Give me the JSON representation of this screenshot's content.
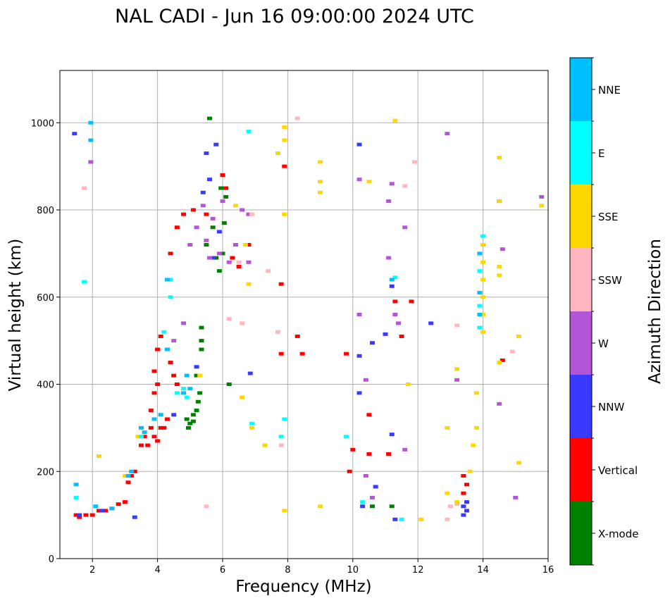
{
  "chart_data": {
    "type": "scatter",
    "title": "NAL CADI - Jun 16 09:00:00 2024 UTC",
    "xlabel": "Frequency (MHz)",
    "ylabel": "Virtual height (km)",
    "xlim": [
      1,
      16
    ],
    "ylim": [
      0,
      1120
    ],
    "xticks": [
      2,
      4,
      6,
      8,
      10,
      12,
      14,
      16
    ],
    "yticks": [
      0,
      200,
      400,
      600,
      800,
      1000
    ],
    "grid": true,
    "colorbar": {
      "label": "Azimuth Direction",
      "categories": [
        {
          "name": "X-mode",
          "color": "#008000"
        },
        {
          "name": "Vertical",
          "color": "#ff0000"
        },
        {
          "name": "NNW",
          "color": "#3a3aff"
        },
        {
          "name": "W",
          "color": "#b455d8"
        },
        {
          "name": "SSW",
          "color": "#ffb6c1"
        },
        {
          "name": "SSE",
          "color": "#ffd700"
        },
        {
          "name": "E",
          "color": "#00ffff"
        },
        {
          "name": "NNE",
          "color": "#00bfff"
        }
      ]
    },
    "series": [
      {
        "name": "X-mode",
        "points": [
          [
            4.9,
            320
          ],
          [
            5.0,
            310
          ],
          [
            5.1,
            330
          ],
          [
            5.2,
            340
          ],
          [
            5.25,
            360
          ],
          [
            5.3,
            380
          ],
          [
            5.1,
            315
          ],
          [
            4.95,
            300
          ],
          [
            5.2,
            420
          ],
          [
            5.35,
            480
          ],
          [
            5.35,
            500
          ],
          [
            5.35,
            530
          ],
          [
            5.5,
            720
          ],
          [
            5.7,
            760
          ],
          [
            5.8,
            690
          ],
          [
            5.9,
            660
          ],
          [
            6.0,
            700
          ],
          [
            6.05,
            770
          ],
          [
            6.1,
            830
          ],
          [
            5.95,
            850
          ],
          [
            5.6,
            1010
          ],
          [
            6.2,
            400
          ],
          [
            10.6,
            120
          ],
          [
            11.2,
            120
          ]
        ]
      },
      {
        "name": "Vertical",
        "points": [
          [
            1.5,
            100
          ],
          [
            1.6,
            95
          ],
          [
            1.8,
            100
          ],
          [
            2.0,
            100
          ],
          [
            2.2,
            110
          ],
          [
            2.4,
            110
          ],
          [
            2.6,
            115
          ],
          [
            2.8,
            125
          ],
          [
            3.0,
            130
          ],
          [
            3.1,
            175
          ],
          [
            3.2,
            190
          ],
          [
            3.3,
            200
          ],
          [
            3.5,
            260
          ],
          [
            3.6,
            280
          ],
          [
            3.7,
            260
          ],
          [
            3.8,
            300
          ],
          [
            3.9,
            280
          ],
          [
            4.0,
            270
          ],
          [
            4.2,
            300
          ],
          [
            4.3,
            320
          ],
          [
            4.1,
            300
          ],
          [
            3.8,
            340
          ],
          [
            3.9,
            380
          ],
          [
            4.0,
            400
          ],
          [
            3.9,
            430
          ],
          [
            4.0,
            480
          ],
          [
            4.1,
            510
          ],
          [
            4.4,
            450
          ],
          [
            4.5,
            420
          ],
          [
            4.6,
            400
          ],
          [
            4.4,
            700
          ],
          [
            4.6,
            760
          ],
          [
            4.8,
            790
          ],
          [
            5.1,
            800
          ],
          [
            5.5,
            790
          ],
          [
            6.0,
            880
          ],
          [
            6.1,
            850
          ],
          [
            6.3,
            690
          ],
          [
            6.5,
            670
          ],
          [
            6.8,
            720
          ],
          [
            7.8,
            630
          ],
          [
            7.8,
            470
          ],
          [
            7.9,
            900
          ],
          [
            8.3,
            510
          ],
          [
            8.45,
            470
          ],
          [
            9.8,
            470
          ],
          [
            9.9,
            200
          ],
          [
            10.0,
            250
          ],
          [
            10.5,
            240
          ],
          [
            10.5,
            330
          ],
          [
            11.1,
            240
          ],
          [
            11.3,
            590
          ],
          [
            11.5,
            510
          ],
          [
            11.8,
            590
          ],
          [
            13.4,
            150
          ],
          [
            13.4,
            190
          ],
          [
            13.5,
            170
          ],
          [
            14.6,
            455
          ]
        ]
      },
      {
        "name": "NNW",
        "points": [
          [
            1.45,
            975
          ],
          [
            1.6,
            100
          ],
          [
            2.3,
            110
          ],
          [
            3.3,
            95
          ],
          [
            4.5,
            330
          ],
          [
            5.2,
            440
          ],
          [
            5.4,
            840
          ],
          [
            5.5,
            930
          ],
          [
            5.6,
            870
          ],
          [
            5.7,
            690
          ],
          [
            5.8,
            950
          ],
          [
            5.9,
            750
          ],
          [
            6.85,
            425
          ],
          [
            10.2,
            950
          ],
          [
            10.2,
            465
          ],
          [
            10.2,
            380
          ],
          [
            10.3,
            120
          ],
          [
            10.6,
            495
          ],
          [
            10.7,
            165
          ],
          [
            11.0,
            515
          ],
          [
            11.2,
            285
          ],
          [
            11.3,
            90
          ],
          [
            11.2,
            625
          ],
          [
            12.4,
            540
          ],
          [
            13.4,
            100
          ],
          [
            13.4,
            120
          ],
          [
            13.5,
            110
          ],
          [
            13.5,
            130
          ],
          [
            14.5,
            820
          ]
        ]
      },
      {
        "name": "W",
        "points": [
          [
            1.95,
            910
          ],
          [
            4.5,
            500
          ],
          [
            4.8,
            540
          ],
          [
            5.0,
            720
          ],
          [
            5.2,
            760
          ],
          [
            5.4,
            810
          ],
          [
            5.5,
            730
          ],
          [
            5.6,
            690
          ],
          [
            5.7,
            780
          ],
          [
            5.9,
            700
          ],
          [
            6.0,
            820
          ],
          [
            6.2,
            680
          ],
          [
            6.4,
            720
          ],
          [
            6.6,
            800
          ],
          [
            6.8,
            790
          ],
          [
            6.8,
            680
          ],
          [
            10.2,
            870
          ],
          [
            10.2,
            560
          ],
          [
            10.4,
            410
          ],
          [
            10.4,
            190
          ],
          [
            10.6,
            140
          ],
          [
            11.1,
            820
          ],
          [
            11.2,
            860
          ],
          [
            11.1,
            690
          ],
          [
            11.3,
            560
          ],
          [
            11.4,
            540
          ],
          [
            11.6,
            760
          ],
          [
            11.6,
            250
          ],
          [
            12.9,
            975
          ],
          [
            13.2,
            410
          ],
          [
            14.5,
            355
          ],
          [
            14.6,
            710
          ],
          [
            15.0,
            140
          ],
          [
            15.8,
            830
          ]
        ]
      },
      {
        "name": "SSW",
        "points": [
          [
            1.75,
            850
          ],
          [
            5.5,
            120
          ],
          [
            6.2,
            550
          ],
          [
            6.5,
            680
          ],
          [
            6.6,
            540
          ],
          [
            6.9,
            790
          ],
          [
            7.4,
            660
          ],
          [
            7.7,
            520
          ],
          [
            7.8,
            260
          ],
          [
            8.3,
            1010
          ],
          [
            11.6,
            855
          ],
          [
            11.9,
            910
          ],
          [
            12.9,
            90
          ],
          [
            13.0,
            120
          ],
          [
            13.2,
            535
          ],
          [
            13.2,
            125
          ],
          [
            14.9,
            475
          ]
        ]
      },
      {
        "name": "SSE",
        "points": [
          [
            2.2,
            235
          ],
          [
            3.0,
            190
          ],
          [
            3.4,
            280
          ],
          [
            5.3,
            420
          ],
          [
            6.4,
            810
          ],
          [
            6.6,
            370
          ],
          [
            6.7,
            720
          ],
          [
            6.8,
            630
          ],
          [
            6.9,
            300
          ],
          [
            7.3,
            260
          ],
          [
            7.7,
            930
          ],
          [
            7.9,
            990
          ],
          [
            7.9,
            960
          ],
          [
            7.9,
            790
          ],
          [
            7.9,
            110
          ],
          [
            9.0,
            910
          ],
          [
            9.0,
            865
          ],
          [
            9.0,
            840
          ],
          [
            9.0,
            120
          ],
          [
            10.5,
            865
          ],
          [
            11.3,
            1005
          ],
          [
            11.7,
            400
          ],
          [
            12.1,
            90
          ],
          [
            12.9,
            300
          ],
          [
            12.9,
            150
          ],
          [
            13.2,
            435
          ],
          [
            13.2,
            130
          ],
          [
            13.6,
            200
          ],
          [
            13.7,
            260
          ],
          [
            13.8,
            300
          ],
          [
            13.8,
            380
          ],
          [
            14.0,
            520
          ],
          [
            14.0,
            560
          ],
          [
            14.0,
            600
          ],
          [
            14.0,
            640
          ],
          [
            14.0,
            680
          ],
          [
            14.0,
            720
          ],
          [
            14.5,
            920
          ],
          [
            14.5,
            820
          ],
          [
            14.5,
            670
          ],
          [
            14.5,
            650
          ],
          [
            14.5,
            450
          ],
          [
            15.1,
            510
          ],
          [
            15.1,
            220
          ],
          [
            15.8,
            810
          ]
        ]
      },
      {
        "name": "E",
        "points": [
          [
            1.5,
            140
          ],
          [
            1.75,
            635
          ],
          [
            3.5,
            280
          ],
          [
            4.2,
            520
          ],
          [
            4.4,
            600
          ],
          [
            4.4,
            640
          ],
          [
            4.6,
            380
          ],
          [
            4.8,
            390
          ],
          [
            4.9,
            370
          ],
          [
            6.8,
            980
          ],
          [
            6.9,
            310
          ],
          [
            7.9,
            320
          ],
          [
            7.8,
            280
          ],
          [
            9.8,
            280
          ],
          [
            10.3,
            130
          ],
          [
            11.3,
            645
          ],
          [
            11.5,
            90
          ],
          [
            13.9,
            530
          ],
          [
            13.9,
            580
          ],
          [
            13.9,
            660
          ],
          [
            13.9,
            700
          ],
          [
            14.0,
            740
          ]
        ]
      },
      {
        "name": "NNE",
        "points": [
          [
            1.5,
            170
          ],
          [
            1.95,
            1000
          ],
          [
            1.95,
            960
          ],
          [
            2.1,
            120
          ],
          [
            2.6,
            115
          ],
          [
            3.1,
            190
          ],
          [
            3.2,
            200
          ],
          [
            3.5,
            300
          ],
          [
            3.6,
            290
          ],
          [
            3.9,
            320
          ],
          [
            4.1,
            330
          ],
          [
            4.3,
            640
          ],
          [
            4.3,
            480
          ],
          [
            4.8,
            380
          ],
          [
            4.9,
            420
          ],
          [
            5.0,
            390
          ],
          [
            11.2,
            640
          ],
          [
            13.9,
            560
          ],
          [
            13.9,
            610
          ],
          [
            13.9,
            700
          ]
        ]
      }
    ]
  }
}
